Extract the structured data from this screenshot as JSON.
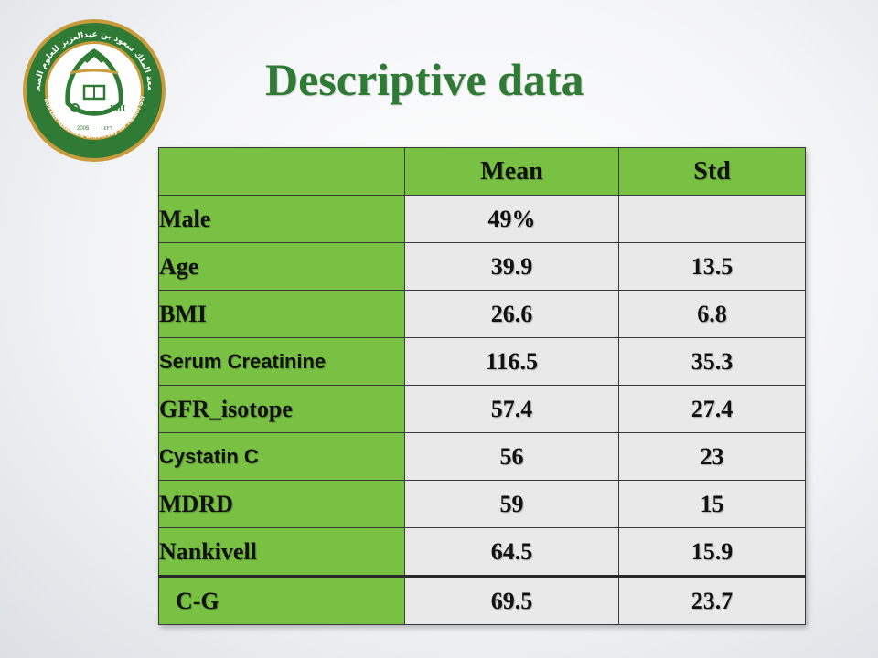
{
  "title": "Descriptive data",
  "logo": {
    "arabic_text": "جامعة الملك سعود بن عبدالعزيز للعلوم الصحية",
    "english_text": "King Saud bin Abdulaziz University for Health Sciences",
    "year_left": "2005",
    "year_right": "١٤٢٦",
    "colors": {
      "green": "#2f7a35",
      "gold": "#c89b3c"
    }
  },
  "table": {
    "headers": [
      "",
      "Mean",
      "Std"
    ],
    "rows": [
      {
        "label": "Male",
        "mean": "49%",
        "std": ""
      },
      {
        "label": "Age",
        "mean": "39.9",
        "std": "13.5"
      },
      {
        "label": "BMI",
        "mean": "26.6",
        "std": "6.8"
      },
      {
        "label": "Serum Creatinine",
        "mean": "116.5",
        "std": "35.3"
      },
      {
        "label": "GFR_isotope",
        "mean": "57.4",
        "std": "27.4"
      },
      {
        "label": "Cystatin C",
        "mean": "56",
        "std": "23"
      },
      {
        "label": "MDRD",
        "mean": "59",
        "std": "15"
      },
      {
        "label": "Nankivell",
        "mean": "64.5",
        "std": "15.9"
      },
      {
        "label": "C-G",
        "mean": "69.5",
        "std": "23.7"
      }
    ]
  },
  "colors": {
    "title": "#2f7a35",
    "header_bg": "#78c142",
    "cell_bg": "#e9e9ea"
  }
}
